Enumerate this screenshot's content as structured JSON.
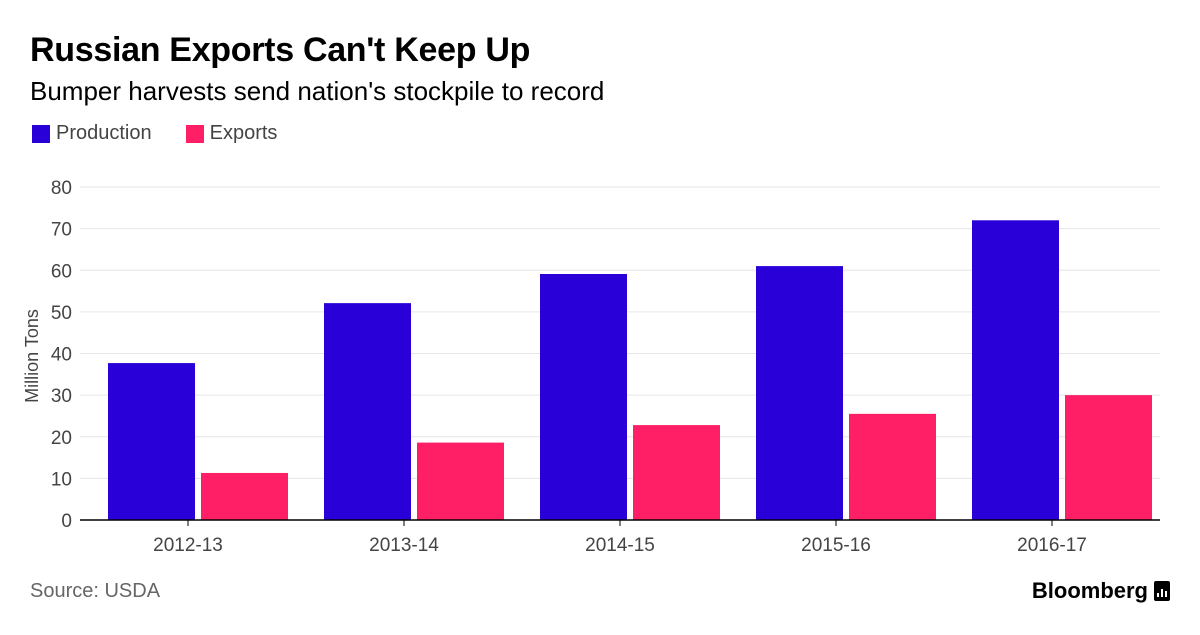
{
  "header": {
    "title": "Russian Exports Can't Keep Up",
    "subtitle": "Bumper harvests send nation's stockpile to record"
  },
  "footer": {
    "source": "Source: USDA",
    "brand": "Bloomberg"
  },
  "colors": {
    "production": "#2a00d9",
    "exports": "#ff1f66",
    "grid": "#e6e6e6",
    "axis": "#000000",
    "tick_text": "#444444"
  },
  "chart_data": {
    "type": "bar",
    "title": "Russian Exports Can't Keep Up",
    "subtitle": "Bumper harvests send nation's stockpile to record",
    "xlabel": "",
    "ylabel": "Million Tons",
    "categories": [
      "2012-13",
      "2013-14",
      "2014-15",
      "2015-16",
      "2016-17"
    ],
    "series": [
      {
        "name": "Production",
        "values": [
          37.7,
          52.1,
          59.1,
          61.0,
          72.0
        ]
      },
      {
        "name": "Exports",
        "values": [
          11.3,
          18.6,
          22.8,
          25.5,
          30.0
        ]
      }
    ],
    "ylim": [
      0,
      80
    ],
    "yticks": [
      0,
      10,
      20,
      30,
      40,
      50,
      60,
      70,
      80
    ],
    "grid": true,
    "legend_position": "top-left"
  }
}
